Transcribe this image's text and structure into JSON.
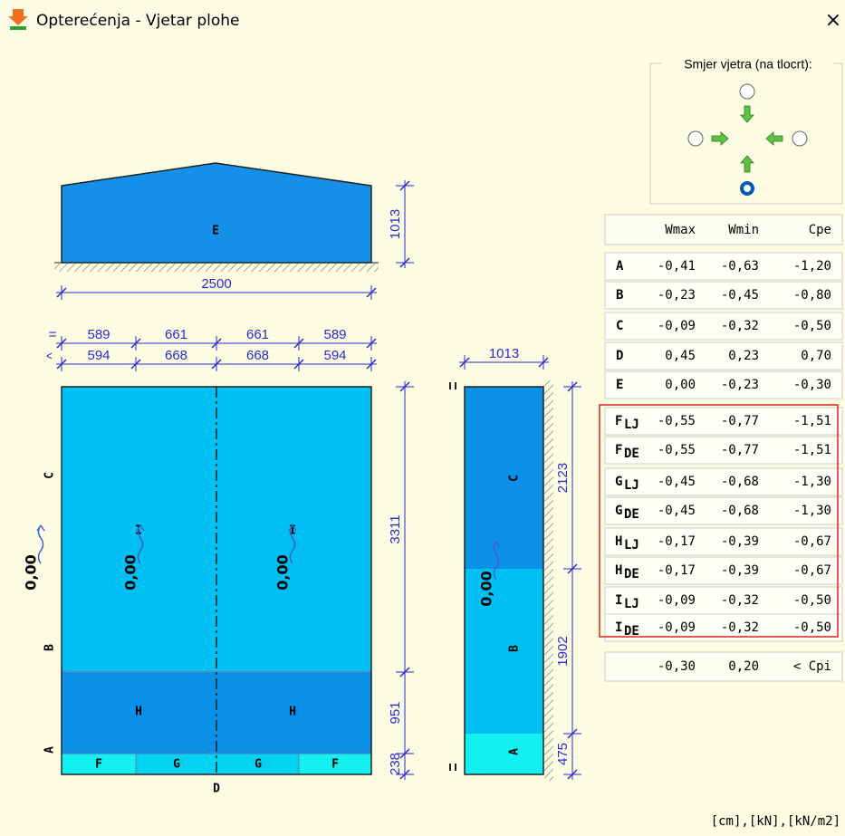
{
  "window": {
    "title": "Opterećenja - Vjetar plohe",
    "close": "×"
  },
  "wind_direction": {
    "label": "Smjer vjetra (na tlocrt):"
  },
  "table": {
    "headers": [
      "Wmax",
      "Wmin",
      "Cpe"
    ],
    "rows": [
      [
        "A",
        "-0,41",
        "-0,63",
        "-1,20"
      ],
      [
        "B",
        "-0,23",
        "-0,45",
        "-0,80"
      ],
      [
        "C",
        "-0,09",
        "-0,32",
        "-0,50"
      ],
      [
        "D",
        "0,45",
        "0,23",
        "0,70"
      ],
      [
        "E",
        "0,00",
        "-0,23",
        "-0,30"
      ]
    ],
    "sub_rows": [
      {
        "letter": "F",
        "sub": "LJ",
        "values": [
          "-0,55",
          "-0,77",
          "-1,51"
        ]
      },
      {
        "letter": "F",
        "sub": "DE",
        "values": [
          "-0,55",
          "-0,77",
          "-1,51"
        ]
      },
      {
        "letter": "G",
        "sub": "LJ",
        "values": [
          "-0,45",
          "-0,68",
          "-1,30"
        ]
      },
      {
        "letter": "G",
        "sub": "DE",
        "values": [
          "-0,45",
          "-0,68",
          "-1,30"
        ]
      },
      {
        "letter": "H",
        "sub": "LJ",
        "values": [
          "-0,17",
          "-0,39",
          "-0,67"
        ]
      },
      {
        "letter": "H",
        "sub": "DE",
        "values": [
          "-0,17",
          "-0,39",
          "-0,67"
        ]
      },
      {
        "letter": "I",
        "sub": "LJ",
        "values": [
          "-0,09",
          "-0,32",
          "-0,50"
        ]
      },
      {
        "letter": "I",
        "sub": "DE",
        "values": [
          "-0,09",
          "-0,32",
          "-0,50"
        ]
      }
    ],
    "cpi_row": [
      "-0,30",
      "0,20",
      "< Cpi"
    ]
  },
  "units": "[cm],[kN],[kN/m2]",
  "drawing": {
    "elevation": {
      "zone": "E",
      "height": "1013",
      "width": "2500"
    },
    "plan": {
      "row1_mark": "=",
      "row1": [
        "589",
        "661",
        "661",
        "589"
      ],
      "row2_mark": "^",
      "row2": [
        "594",
        "668",
        "668",
        "594"
      ],
      "side_labels": [
        "C",
        "B",
        "A"
      ],
      "bottom_label": "D",
      "zone_I": [
        "I",
        "I"
      ],
      "zone_H": [
        "H",
        "H"
      ],
      "zone_row": [
        "F",
        "G",
        "G",
        "F"
      ],
      "loads": [
        "0,00",
        "0,00",
        "0,00"
      ],
      "dims": [
        "3311",
        "951",
        "238"
      ]
    },
    "section": {
      "width": "1013",
      "labels": [
        "C",
        "B",
        "A"
      ],
      "load": "0,00",
      "dims": [
        "2123",
        "1902",
        "475"
      ]
    }
  }
}
